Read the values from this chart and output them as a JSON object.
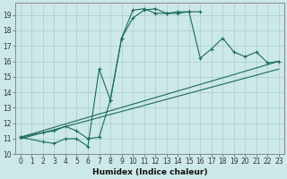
{
  "xlabel": "Humidex (Indice chaleur)",
  "bg_color": "#cce8e8",
  "grid_color": "#aacccc",
  "line_color": "#1a6b5a",
  "xlim": [
    -0.5,
    23.5
  ],
  "ylim": [
    10,
    19.8
  ],
  "yticks": [
    10,
    11,
    12,
    13,
    14,
    15,
    16,
    17,
    18,
    19
  ],
  "xticks": [
    0,
    1,
    2,
    3,
    4,
    5,
    6,
    7,
    8,
    9,
    10,
    11,
    12,
    13,
    14,
    15,
    16,
    17,
    18,
    19,
    20,
    21,
    22,
    23
  ],
  "series": [
    {
      "x": [
        0,
        2,
        3,
        4,
        5,
        6,
        7,
        8,
        9,
        10,
        11,
        12,
        13,
        14,
        15,
        16,
        17,
        18,
        19,
        20,
        21,
        22,
        23
      ],
      "y": [
        11.1,
        10.8,
        10.7,
        11.0,
        11.0,
        10.5,
        15.5,
        13.5,
        17.5,
        18.8,
        19.3,
        19.4,
        19.1,
        19.1,
        19.2,
        16.2,
        16.8,
        17.5,
        16.6,
        16.3,
        16.6,
        15.9,
        16.0
      ],
      "style": "solid",
      "marker": "+"
    },
    {
      "x": [
        0,
        2,
        3,
        4,
        5,
        6,
        7,
        8,
        9,
        10,
        11,
        12,
        13,
        14,
        15,
        16
      ],
      "y": [
        11.1,
        11.4,
        11.5,
        11.8,
        11.5,
        11.0,
        11.1,
        13.5,
        17.5,
        19.3,
        19.4,
        19.1,
        19.1,
        19.2,
        19.2,
        19.2
      ],
      "style": "solid",
      "marker": "+"
    },
    {
      "x": [
        0,
        23
      ],
      "y": [
        11.1,
        16.0
      ],
      "style": "solid",
      "marker": "none"
    },
    {
      "x": [
        0,
        23
      ],
      "y": [
        11.0,
        15.5
      ],
      "style": "solid",
      "marker": "none"
    }
  ]
}
